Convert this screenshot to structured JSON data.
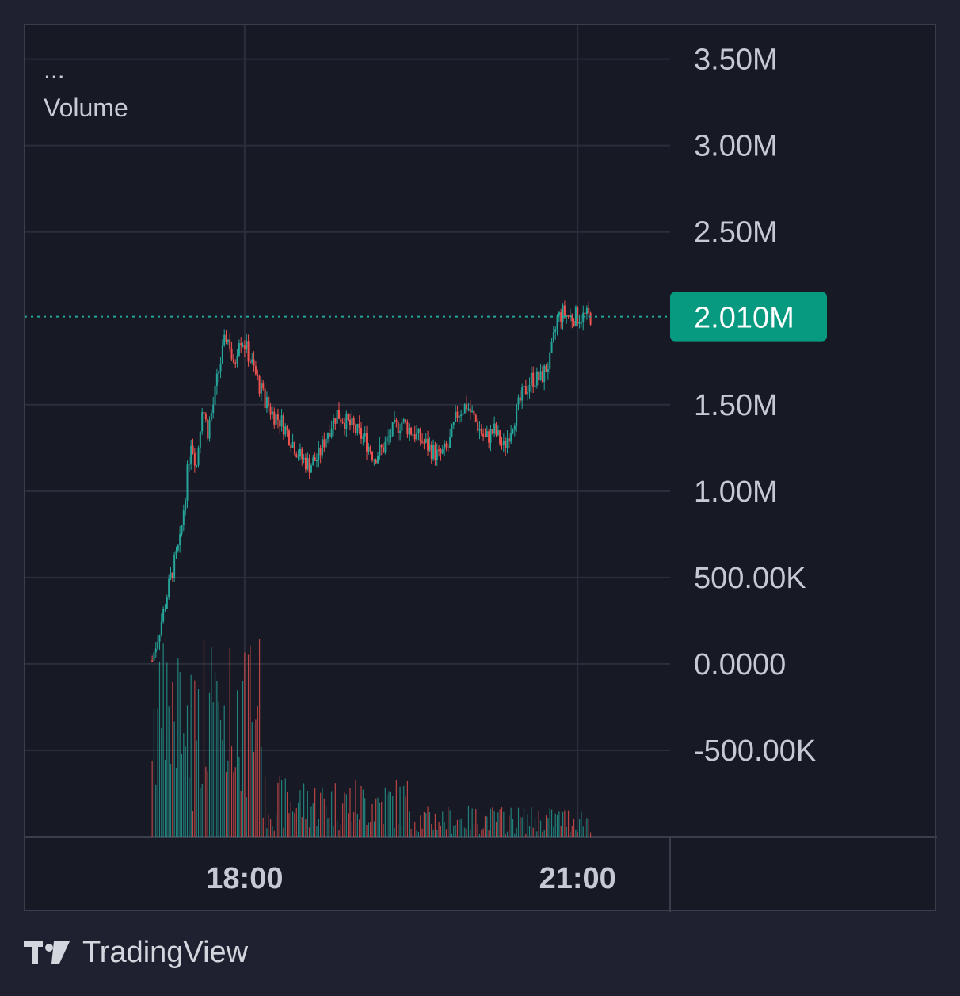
{
  "brand": {
    "name": "TradingView",
    "logo_icon": "tradingview-logo-icon"
  },
  "legend": {
    "menu": "...",
    "title": "Volume"
  },
  "colors": {
    "background": "#171a25",
    "grid": "#2b2e3b",
    "up": "#26a69a",
    "down": "#ef5350",
    "last_price_bg": "#089981",
    "text": "#c7c9d2"
  },
  "last_price_label": "2.010M",
  "chart_data": {
    "type": "candlestick",
    "title": "",
    "price_axis": {
      "ticks": [
        {
          "value": 3500000,
          "label": "3.50M"
        },
        {
          "value": 3000000,
          "label": "3.00M"
        },
        {
          "value": 2500000,
          "label": "2.50M"
        },
        {
          "value": 1500000,
          "label": "1.50M"
        },
        {
          "value": 1000000,
          "label": "1.00M"
        },
        {
          "value": 500000,
          "label": "500.00K"
        },
        {
          "value": 0,
          "label": "0.0000"
        },
        {
          "value": -500000,
          "label": "-500.00K"
        }
      ],
      "range": [
        -1000000,
        3700000
      ]
    },
    "time_axis": {
      "ticks": [
        {
          "label": "18:00",
          "minutes": 1080
        },
        {
          "label": "21:00",
          "minutes": 1260
        }
      ],
      "start_minutes": 1030,
      "end_minutes": 1267,
      "view_start_minutes": 961,
      "view_end_minutes": 1310
    },
    "last_price": 2010000,
    "price_path": [
      [
        1030,
        20000
      ],
      [
        1035,
        250000
      ],
      [
        1040,
        500000
      ],
      [
        1045,
        700000
      ],
      [
        1048,
        1000000
      ],
      [
        1051,
        1300000
      ],
      [
        1054,
        1150000
      ],
      [
        1057,
        1500000
      ],
      [
        1060,
        1350000
      ],
      [
        1063,
        1500000
      ],
      [
        1066,
        1700000
      ],
      [
        1070,
        1900000
      ],
      [
        1072,
        1850000
      ],
      [
        1074,
        1700000
      ],
      [
        1077,
        1900000
      ],
      [
        1080,
        1850000
      ],
      [
        1085,
        1700000
      ],
      [
        1090,
        1550000
      ],
      [
        1095,
        1450000
      ],
      [
        1100,
        1400000
      ],
      [
        1105,
        1300000
      ],
      [
        1110,
        1200000
      ],
      [
        1115,
        1150000
      ],
      [
        1120,
        1200000
      ],
      [
        1125,
        1350000
      ],
      [
        1130,
        1450000
      ],
      [
        1135,
        1400000
      ],
      [
        1140,
        1350000
      ],
      [
        1145,
        1300000
      ],
      [
        1150,
        1200000
      ],
      [
        1155,
        1250000
      ],
      [
        1160,
        1350000
      ],
      [
        1165,
        1400000
      ],
      [
        1170,
        1350000
      ],
      [
        1175,
        1300000
      ],
      [
        1180,
        1250000
      ],
      [
        1185,
        1200000
      ],
      [
        1190,
        1250000
      ],
      [
        1195,
        1450000
      ],
      [
        1200,
        1500000
      ],
      [
        1205,
        1400000
      ],
      [
        1210,
        1300000
      ],
      [
        1215,
        1350000
      ],
      [
        1220,
        1250000
      ],
      [
        1225,
        1400000
      ],
      [
        1230,
        1550000
      ],
      [
        1235,
        1650000
      ],
      [
        1240,
        1650000
      ],
      [
        1245,
        1750000
      ],
      [
        1249,
        2000000
      ],
      [
        1252,
        2030000
      ],
      [
        1255,
        2010000
      ]
    ],
    "volume": {
      "max_visible": 1
    }
  }
}
